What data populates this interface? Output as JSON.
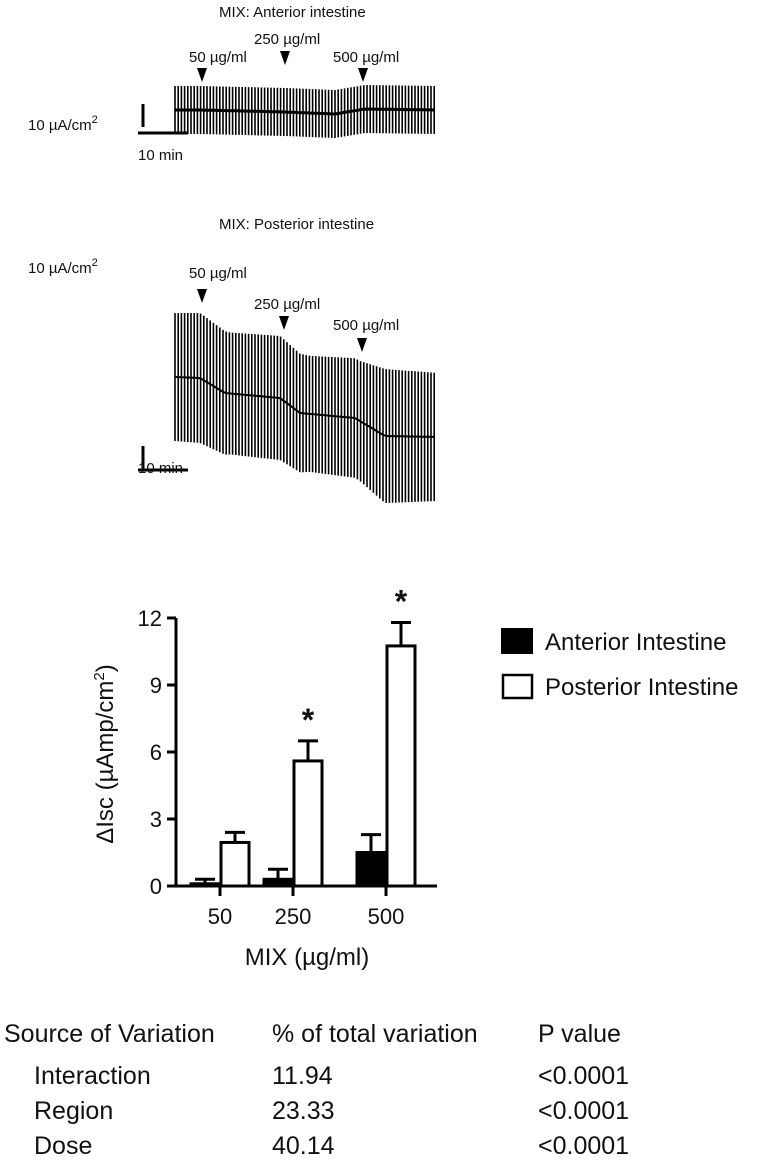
{
  "traces": [
    {
      "title": "MIX: Anterior intestine",
      "doses": [
        "50 µg/ml",
        "250 µg/ml",
        "500 µg/ml"
      ],
      "scale_current": "10 µA/cm",
      "scale_current_sup": "2",
      "scale_time": "10 min"
    },
    {
      "title": "MIX: Posterior intestine",
      "doses": [
        "50 µg/ml",
        "250 µg/ml",
        "500 µg/ml"
      ],
      "scale_current": "10 µA/cm",
      "scale_current_sup": "2",
      "scale_time": "10 min"
    }
  ],
  "chart_data": {
    "type": "bar",
    "categories": [
      "50",
      "250",
      "500"
    ],
    "series": [
      {
        "name": "Anterior Intestine",
        "color": "#000000",
        "values": [
          0.1,
          0.3,
          1.5
        ],
        "errors": [
          0.2,
          0.45,
          0.8
        ]
      },
      {
        "name": "Posterior Intestine",
        "color": "#ffffff",
        "values": [
          1.95,
          5.6,
          10.75
        ],
        "errors": [
          0.45,
          0.9,
          1.05
        ]
      }
    ],
    "significance": [
      {
        "category": "250",
        "series": "Posterior Intestine",
        "label": "*"
      },
      {
        "category": "500",
        "series": "Posterior Intestine",
        "label": "*"
      }
    ],
    "xlabel": "MIX (µg/ml)",
    "ylabel": "ΔIsc (µAmp/cm",
    "ylabel_sup": "2",
    "ylabel_end": ")",
    "yticks": [
      0,
      3,
      6,
      9,
      12
    ],
    "ylim": [
      0,
      12
    ],
    "grid": false,
    "legend_position": "right"
  },
  "stats_table": {
    "headers": [
      "Source of Variation",
      "% of total variation",
      "P value"
    ],
    "rows": [
      [
        "Interaction",
        "11.94",
        "<0.0001"
      ],
      [
        "Region",
        "23.33",
        "<0.0001"
      ],
      [
        "Dose",
        "40.14",
        "<0.0001"
      ]
    ]
  }
}
